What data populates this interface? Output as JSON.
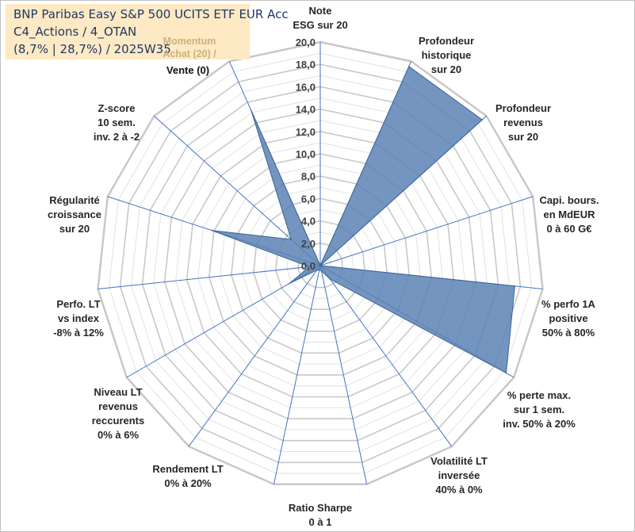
{
  "title": {
    "line1": "BNP Paribas Easy S&P 500 UCITS ETF EUR Acc",
    "line2": "C4_Actions / 4_OTAN",
    "line3": "(8,7% | 28,7%) / 2025W35"
  },
  "colors": {
    "area_fill": "#5b82b5",
    "area_stroke": "#3d6596",
    "grid": "#d4d4d4",
    "spoke": "#4472c4",
    "title_bg": "#fde9c4"
  },
  "chart_data": {
    "type": "radar",
    "rlim": [
      0,
      20
    ],
    "grid_step": 1,
    "tick_step": 2,
    "tick_labels": [
      "0,0",
      "2,0",
      "4,0",
      "6,0",
      "8,0",
      "10,0",
      "12,0",
      "14,0",
      "16,0",
      "18,0",
      "20,0"
    ],
    "axes": [
      {
        "label": [
          "Note",
          "ESG sur 20"
        ],
        "value": 0
      },
      {
        "label": [
          "Profondeur",
          "historique",
          "sur 20"
        ],
        "value": 19.5
      },
      {
        "label": [
          "Profondeur",
          "revenus",
          "sur 20"
        ],
        "value": 19.5
      },
      {
        "label": [
          "Capi. bours.",
          "en MdEUR",
          "0 à 60 G€"
        ],
        "value": 0
      },
      {
        "label": [
          "% perfo 1A",
          "positive",
          "50% à 80%"
        ],
        "value": 17.5
      },
      {
        "label": [
          "% perte max.",
          "sur 1 sem.",
          "inv. 50% à 20%"
        ],
        "value": 19.2
      },
      {
        "label": [
          "Volatilité LT",
          "inversée",
          "40% à 0%"
        ],
        "value": 1.5
      },
      {
        "label": [
          "Ratio Sharpe",
          "0 à 1"
        ],
        "value": 0.5
      },
      {
        "label": [
          "Rendement LT",
          "0% à 20%"
        ],
        "value": 0.4
      },
      {
        "label": [
          "Niveau LT",
          "revenus",
          "reccurents",
          "0% à 6%"
        ],
        "value": 0.5
      },
      {
        "label": [
          "Perfo. LT",
          "vs index",
          "-8% à 12%"
        ],
        "value": 3.2
      },
      {
        "label": [
          "Momentum",
          "Achat (20) /",
          "Vente (0)"
        ],
        "value": 1.0
      },
      {
        "label": [
          "Régularité",
          "croissance",
          "sur 20"
        ],
        "value": 10.2
      },
      {
        "label": [
          "Z-score",
          "10 sem.",
          "inv. 2 à -2"
        ],
        "value": 3.5
      },
      {
        "label": [
          "Momentum",
          "Achat (20) /",
          "Vente (0)"
        ],
        "value": 15.2
      }
    ]
  }
}
